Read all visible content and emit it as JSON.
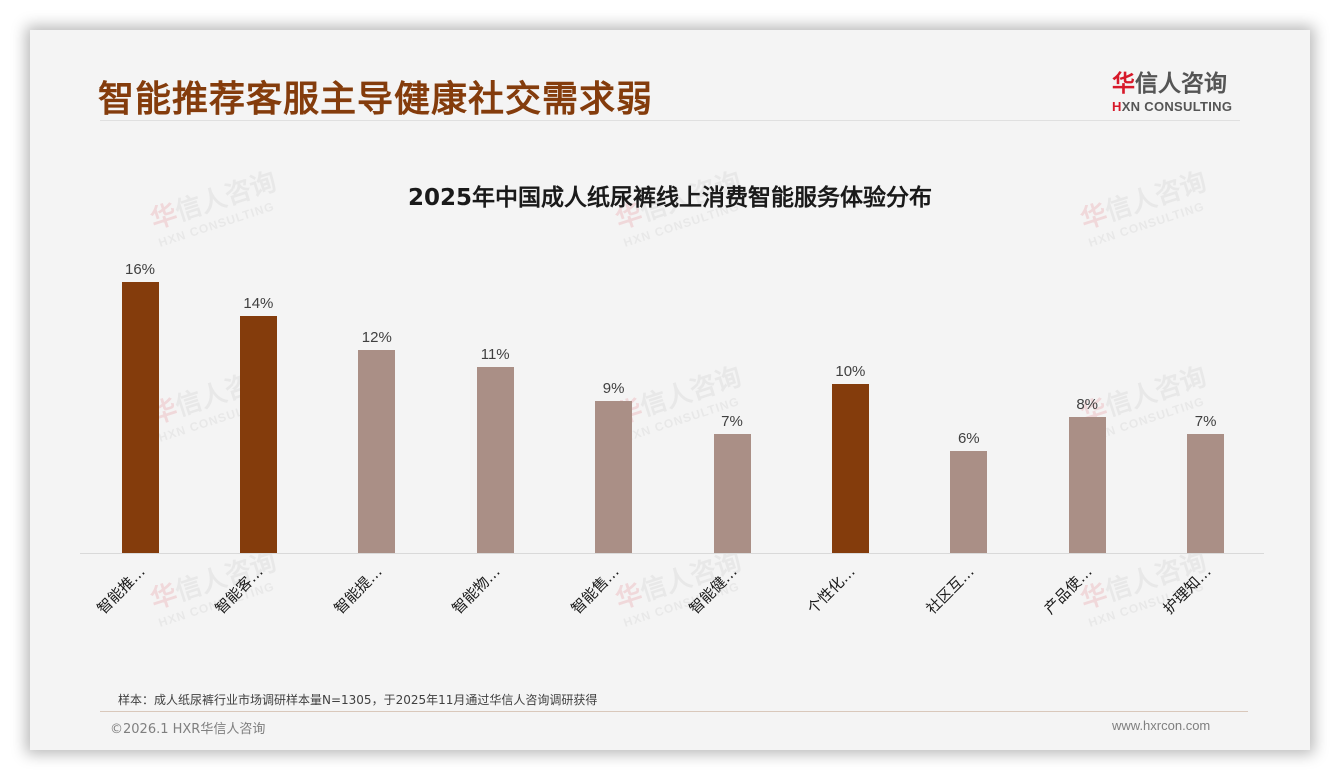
{
  "header": {
    "title": "智能推荐客服主导健康社交需求弱",
    "logo_cn_red": "华",
    "logo_cn_rest": "信人咨询",
    "logo_en_red": "H",
    "logo_en_rest": "XN CONSULTING"
  },
  "watermark": {
    "cn_red": "华",
    "cn_rest": "信人咨询",
    "en": "HXN CONSULTING"
  },
  "colors": {
    "title": "#843c0c",
    "highlight_bar": "#843c0c",
    "normal_bar": "#aa8f86",
    "logo_red": "#d7192a"
  },
  "chart_data": {
    "type": "bar",
    "title": "2025年中国成人纸尿裤线上消费智能服务体验分布",
    "xlabel": "",
    "ylabel": "",
    "ylim": [
      0,
      19
    ],
    "grid": false,
    "legend": null,
    "categories": [
      "智能推…",
      "智能客…",
      "智能提…",
      "智能物…",
      "智能售…",
      "智能健…",
      "个性化…",
      "社区互…",
      "产品使…",
      "护理知…"
    ],
    "values": [
      16,
      14,
      12,
      11,
      9,
      7,
      10,
      6,
      8,
      7
    ],
    "value_labels": [
      "16%",
      "14%",
      "12%",
      "11%",
      "9%",
      "7%",
      "10%",
      "6%",
      "8%",
      "7%"
    ],
    "highlighted": [
      true,
      true,
      false,
      false,
      false,
      false,
      true,
      false,
      false,
      false
    ]
  },
  "footer": {
    "note": "样本：成人纸尿裤行业市场调研样本量N=1305，于2025年11月通过华信人咨询调研获得",
    "copyright": "©2026.1 HXR华信人咨询",
    "website": "www.hxrcon.com"
  }
}
